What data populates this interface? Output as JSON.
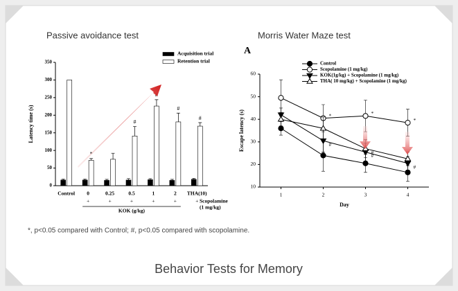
{
  "chart_data": [
    {
      "type": "bar",
      "title": "Passive avoidance test",
      "ylabel": "Latency time (s)",
      "categories": [
        "Control",
        "0",
        "0.25",
        "0.5",
        "1",
        "2",
        "THA(10)"
      ],
      "scopolamine_marks": [
        null,
        "+",
        "+",
        "+",
        "+",
        "+",
        "+"
      ],
      "scopolamine_label": [
        "Scopolamine",
        "(1 mg/kg)"
      ],
      "group_label": "KOK (g/kg)",
      "series": [
        {
          "name": "Acquisition trial",
          "color": "#000000",
          "values": [
            16,
            16,
            15,
            16,
            17,
            15,
            18
          ],
          "errors": [
            3,
            3,
            3,
            4,
            3,
            3,
            3
          ],
          "annotations": [
            null,
            null,
            null,
            null,
            null,
            null,
            null
          ]
        },
        {
          "name": "Retention trial",
          "color": "#ffffff",
          "values": [
            300,
            72,
            75,
            141,
            226,
            181,
            169
          ],
          "errors": [
            null,
            5,
            17,
            27,
            18,
            25,
            10
          ],
          "annotations": [
            null,
            "*",
            null,
            "#",
            "#",
            "#",
            "#"
          ]
        }
      ],
      "ylim": [
        0,
        350
      ],
      "yticks": [
        0,
        50,
        100,
        150,
        200,
        250,
        300,
        350
      ],
      "legend": "upper right"
    },
    {
      "type": "line",
      "title": "Morris Water Maze test",
      "panel_label": "A",
      "xlabel": "Day",
      "ylabel": "Escape latency (s)",
      "x": [
        1,
        2,
        3,
        4
      ],
      "xlim": [
        0.5,
        4.5
      ],
      "xticks": [
        1,
        2,
        3,
        4
      ],
      "ylim": [
        10,
        60
      ],
      "yticks": [
        10,
        20,
        30,
        40,
        50,
        60
      ],
      "legend": "upper left",
      "series": [
        {
          "name": "Control",
          "color": "#000000",
          "marker": "circle",
          "filled": true,
          "values": [
            36,
            24,
            20.5,
            16.5
          ],
          "errors": [
            3,
            7,
            4,
            4
          ],
          "annotations": [
            null,
            null,
            null,
            null
          ]
        },
        {
          "name": "Scopolamine (1 mg/kg)",
          "color": "#000000",
          "marker": "circle",
          "filled": false,
          "values": [
            49.5,
            40.5,
            41.5,
            38.5
          ],
          "errors": [
            8,
            6,
            7,
            6
          ],
          "annotations": [
            null,
            "*",
            "*",
            "*"
          ]
        },
        {
          "name": "KOK(1g/kg) + Scopolamine (1 mg/kg)",
          "color": "#000000",
          "marker": "triangle-down",
          "filled": true,
          "values": [
            42,
            30.5,
            25.5,
            20.5
          ],
          "errors": [
            3,
            5,
            4,
            3
          ],
          "annotations": [
            null,
            "#",
            "#",
            "#"
          ]
        },
        {
          "name": "THA( 10 mg/kg) + Scopolamine (1 mg/kg)",
          "color": "#000000",
          "marker": "triangle-up",
          "filled": false,
          "values": [
            40,
            36,
            27,
            22.5
          ],
          "errors": [
            3,
            5,
            4,
            3
          ],
          "annotations": [
            null,
            null,
            "#",
            null
          ]
        }
      ]
    }
  ],
  "footnote": "*, p<0.05 compared with Control; #, p<0.05 compared with scopolamine.",
  "caption": "Behavior Tests for Memory"
}
